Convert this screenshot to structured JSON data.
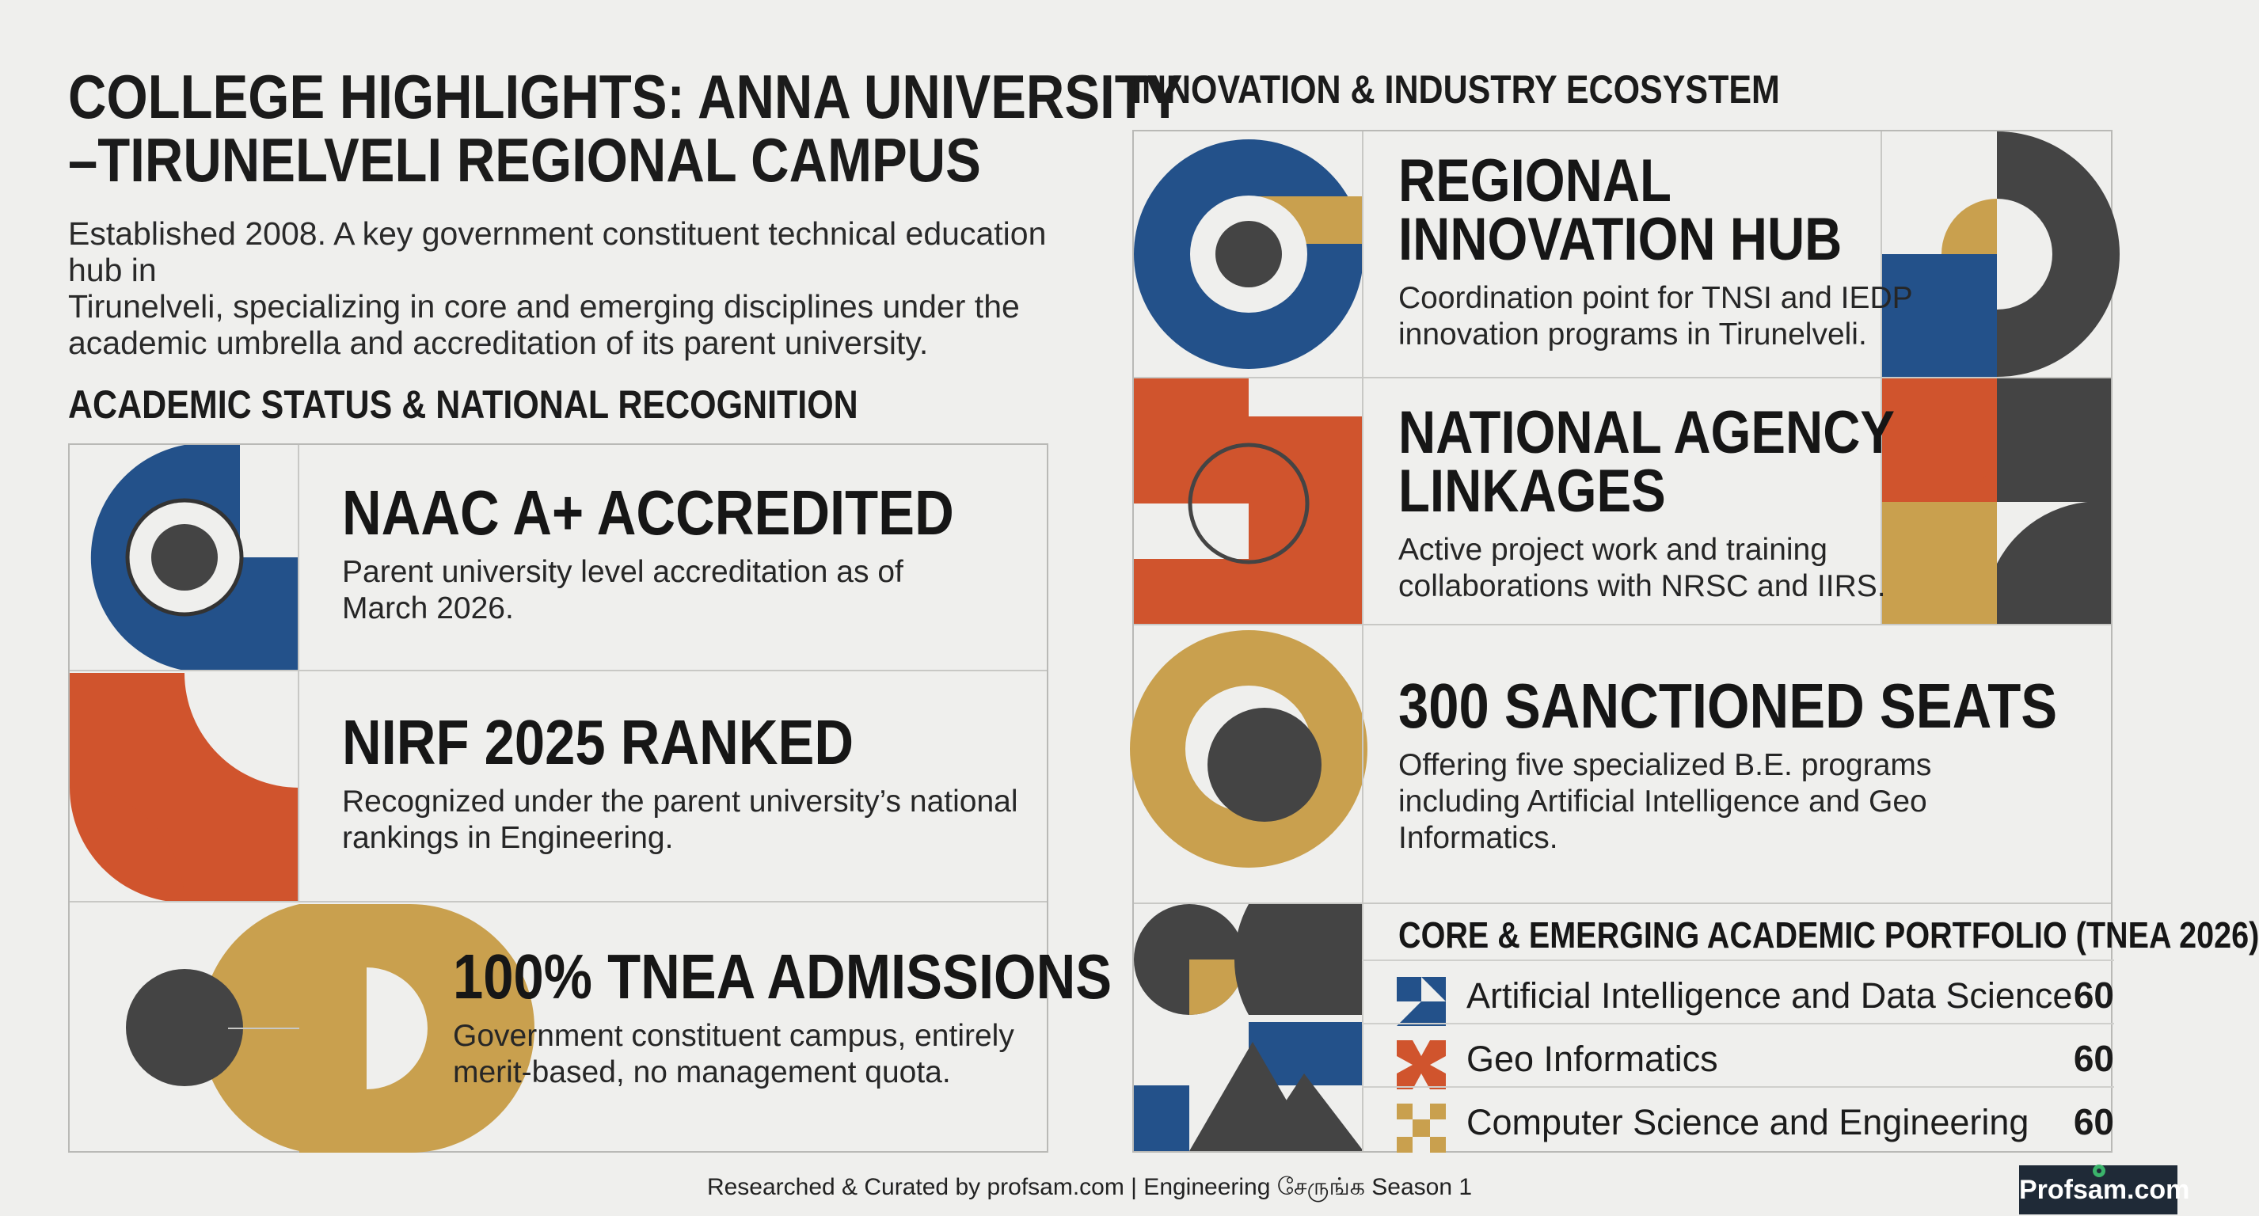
{
  "header": {
    "title_line1": "COLLEGE HIGHLIGHTS: ANNA UNIVERSITY",
    "title_line2": "–TIRUNELVELI REGIONAL CAMPUS",
    "intro_line1": "Established 2008. A key government constituent technical education hub in",
    "intro_line2": "Tirunelveli, specializing in core and emerging disciplines under the",
    "intro_line3": "academic umbrella and accreditation of its parent university."
  },
  "left_section": {
    "heading": "ACADEMIC STATUS & NATIONAL RECOGNITION",
    "cards": [
      {
        "title": "NAAC A+ ACCREDITED",
        "desc_line1": "Parent university level accreditation as of",
        "desc_line2": "March 2026."
      },
      {
        "title": "NIRF 2025 RANKED",
        "desc_line1": "Recognized under the parent university’s national",
        "desc_line2": "rankings in Engineering."
      },
      {
        "title": "100% TNEA ADMISSIONS",
        "desc_line1": "Government constituent campus, entirely",
        "desc_line2": "merit-based, no management quota."
      }
    ]
  },
  "right_section": {
    "heading": "INNOVATION & INDUSTRY ECOSYSTEM",
    "cards": [
      {
        "title_line1": "REGIONAL",
        "title_line2": "INNOVATION HUB",
        "desc_line1": "Coordination point for TNSI and IEDP",
        "desc_line2": "innovation programs in Tirunelveli."
      },
      {
        "title_line1": "NATIONAL AGENCY",
        "title_line2": "LINKAGES",
        "desc_line1": "Active project work and training",
        "desc_line2": "collaborations with NRSC and IIRS."
      },
      {
        "title_line1": "300 SANCTIONED SEATS",
        "desc_line1": "Offering five specialized B.E. programs",
        "desc_line2": "including Artificial Intelligence and Geo",
        "desc_line3": "Informatics."
      }
    ],
    "portfolio": {
      "heading": "CORE & EMERGING ACADEMIC PORTFOLIO (TNEA 2026)",
      "programs": [
        {
          "name": "Artificial Intelligence and Data Science",
          "seats": "60",
          "icon": "blue-pattern-icon"
        },
        {
          "name": "Geo Informatics",
          "seats": "60",
          "icon": "orange-pattern-icon"
        },
        {
          "name": "Computer Science and Engineering",
          "seats": "60",
          "icon": "gold-pattern-icon"
        }
      ]
    }
  },
  "footer": {
    "credit": "Researched & Curated by profsam.com | Engineering சேருங்க Season 1",
    "brand": "Profsam.com"
  },
  "colors": {
    "blue": "#23518a",
    "orange": "#d0542d",
    "gold": "#c9a04e",
    "charcoal": "#444444",
    "background": "#efefed"
  }
}
